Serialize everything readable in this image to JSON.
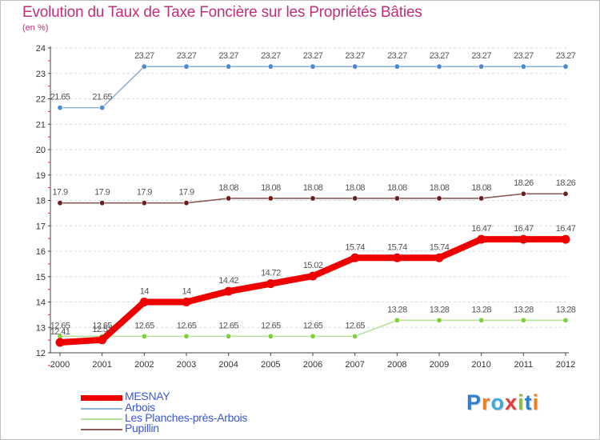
{
  "title": "Evolution du Taux de Taxe Foncière sur les Propriétés Bâties",
  "subtitle": "(en %)",
  "logo": {
    "letters": [
      "P",
      "r",
      "o",
      "x",
      "i",
      "t",
      "i"
    ],
    "colors": [
      "#2f7fd0",
      "#e8801e",
      "#3fa8e0",
      "#e04040",
      "#8bbf2a",
      "#2f7fd0",
      "#e8801e"
    ]
  },
  "chart_data": {
    "type": "line",
    "title": "Evolution du Taux de Taxe Foncière sur les Propriétés Bâties",
    "ylabel": "(en %)",
    "xlabel": "",
    "ylim": [
      12,
      24
    ],
    "yticks": [
      12,
      13,
      14,
      15,
      16,
      17,
      18,
      19,
      20,
      21,
      22,
      23,
      24
    ],
    "x": [
      "2000",
      "2001",
      "2002",
      "2003",
      "2004",
      "2005",
      "2006",
      "2007",
      "2008",
      "2009",
      "2010",
      "2011",
      "2012"
    ],
    "series": [
      {
        "name": "MESNAY",
        "color": "#ee0000",
        "marker": "#ee0000",
        "values": [
          12.41,
          12.51,
          14,
          14,
          14.42,
          14.72,
          15.02,
          15.74,
          15.74,
          15.74,
          16.47,
          16.47,
          16.47
        ],
        "labels": [
          "12.41",
          "12.51",
          "14",
          "14",
          "14.42",
          "14.72",
          "15.02",
          "15.74",
          "15.74",
          "15.74",
          "16.47",
          "16.47",
          "16.47"
        ]
      },
      {
        "name": "Arbois",
        "color": "#8fb4d6",
        "marker": "#4a8ad0",
        "values": [
          21.65,
          21.65,
          23.27,
          23.27,
          23.27,
          23.27,
          23.27,
          23.27,
          23.27,
          23.27,
          23.27,
          23.27,
          23.27
        ],
        "labels": [
          "21.65",
          "21.65",
          "23.27",
          "23.27",
          "23.27",
          "23.27",
          "23.27",
          "23.27",
          "23.27",
          "23.27",
          "23.27",
          "23.27",
          "23.27"
        ]
      },
      {
        "name": "Les Planches-près-Arbois",
        "color": "#b8e09a",
        "marker": "#7ecf3a",
        "values": [
          12.65,
          12.65,
          12.65,
          12.65,
          12.65,
          12.65,
          12.65,
          12.65,
          13.28,
          13.28,
          13.28,
          13.28,
          13.28
        ],
        "labels": [
          "12.65",
          "12.65",
          "12.65",
          "12.65",
          "12.65",
          "12.65",
          "12.65",
          "12.65",
          "13.28",
          "13.28",
          "13.28",
          "13.28",
          "13.28"
        ]
      },
      {
        "name": "Pupillin",
        "color": "#8a5a5a",
        "marker": "#6b2020",
        "values": [
          17.9,
          17.9,
          17.9,
          17.9,
          18.08,
          18.08,
          18.08,
          18.08,
          18.08,
          18.08,
          18.08,
          18.26,
          18.26
        ],
        "labels": [
          "17.9",
          "17.9",
          "17.9",
          "17.9",
          "18.08",
          "18.08",
          "18.08",
          "18.08",
          "18.08",
          "18.08",
          "18.08",
          "18.26",
          "18.26"
        ]
      }
    ],
    "legend": "bottom-left"
  }
}
